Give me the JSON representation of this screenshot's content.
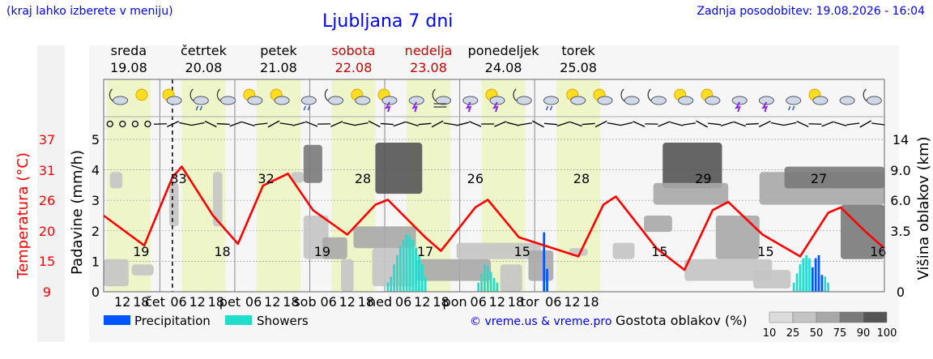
{
  "header": {
    "location_hint": "(kraj lahko izberete v meniju)",
    "title": "Ljubljana 7 dni",
    "last_update": "Zadnja posodobitev: 19.08.2026 - 16:04"
  },
  "chart_data": {
    "type": "line",
    "days": [
      {
        "name": "sreda",
        "date": "19.08",
        "weekend": false
      },
      {
        "name": "četrtek",
        "date": "20.08",
        "weekend": false
      },
      {
        "name": "petek",
        "date": "21.08",
        "weekend": false
      },
      {
        "name": "sobota",
        "date": "22.08",
        "weekend": true
      },
      {
        "name": "nedelja",
        "date": "23.08",
        "weekend": true
      },
      {
        "name": "ponedeljek",
        "date": "24.08",
        "weekend": false
      },
      {
        "name": "torek",
        "date": "25.08",
        "weekend": false
      }
    ],
    "day_short": [
      "čet",
      "pet",
      "sob",
      "ned",
      "pon",
      "tor"
    ],
    "hour_ticks": [
      "06",
      "12",
      "18"
    ],
    "now_hour": 16,
    "left_axis_temp": {
      "label": "Temperatura (°C)",
      "ticks": [
        9,
        15,
        20,
        26,
        31,
        37
      ],
      "color": "#ff0000"
    },
    "left_axis_precip": {
      "label": "Padavine (mm/h)",
      "ticks": [
        0,
        1,
        2,
        3,
        4,
        5
      ],
      "ylim": [
        0,
        5
      ]
    },
    "right_axis": {
      "label": "Višina oblakov (km)",
      "ticks": [
        "0",
        "3.5",
        "6.0",
        "9.0",
        "14"
      ]
    },
    "temperature": {
      "name": "Temperatura",
      "color": "#ff0000",
      "points": [
        {
          "h": 0,
          "t": 23
        },
        {
          "h": 13,
          "t": 17.5
        },
        {
          "h": 22,
          "t": 30
        },
        {
          "h": 25,
          "t": 32
        },
        {
          "h": 35,
          "t": 23
        },
        {
          "h": 43,
          "t": 17.8
        },
        {
          "h": 51,
          "t": 28.5
        },
        {
          "h": 59,
          "t": 30.7
        },
        {
          "h": 67,
          "t": 24
        },
        {
          "h": 78,
          "t": 19.5
        },
        {
          "h": 87,
          "t": 25
        },
        {
          "h": 91,
          "t": 25.9
        },
        {
          "h": 103,
          "t": 19
        },
        {
          "h": 108,
          "t": 16.5
        },
        {
          "h": 119,
          "t": 24.5
        },
        {
          "h": 123,
          "t": 25.9
        },
        {
          "h": 133,
          "t": 19
        },
        {
          "h": 152,
          "t": 15.5
        },
        {
          "h": 160,
          "t": 25
        },
        {
          "h": 164,
          "t": 26.5
        },
        {
          "h": 177,
          "t": 17
        },
        {
          "h": 186,
          "t": 13
        },
        {
          "h": 195,
          "t": 24
        },
        {
          "h": 200,
          "t": 25.5
        },
        {
          "h": 211,
          "t": 19.5
        },
        {
          "h": 223,
          "t": 15.5
        },
        {
          "h": 232,
          "t": 23.5
        },
        {
          "h": 236,
          "t": 24.5
        },
        {
          "h": 244,
          "t": 20
        },
        {
          "h": 250,
          "t": 17
        }
      ],
      "labels": [
        {
          "h": 12,
          "text": "19"
        },
        {
          "h": 24,
          "text": "33"
        },
        {
          "h": 38,
          "text": "18"
        },
        {
          "h": 52,
          "text": "32"
        },
        {
          "h": 70,
          "text": "19"
        },
        {
          "h": 83,
          "text": "28"
        },
        {
          "h": 103,
          "text": "17"
        },
        {
          "h": 119,
          "text": "26"
        },
        {
          "h": 134,
          "text": "15"
        },
        {
          "h": 153,
          "text": "28"
        },
        {
          "h": 178,
          "text": "15"
        },
        {
          "h": 192,
          "text": "29"
        },
        {
          "h": 212,
          "text": "15"
        },
        {
          "h": 229,
          "text": "27"
        },
        {
          "h": 248,
          "text": "16"
        }
      ]
    },
    "precipitation": {
      "name": "Precipitation",
      "color": "#0055ff",
      "bars": [
        {
          "h": 141,
          "v": 1.95
        },
        {
          "h": 142,
          "v": 0.75
        },
        {
          "h": 227,
          "v": 0.8
        },
        {
          "h": 228,
          "v": 1.1
        },
        {
          "h": 229,
          "v": 1.2
        },
        {
          "h": 230,
          "v": 0.55
        }
      ]
    },
    "showers": {
      "name": "Showers",
      "color": "#22ddcc",
      "bars": [
        {
          "h": 91,
          "v": 0.3
        },
        {
          "h": 92,
          "v": 0.5
        },
        {
          "h": 93,
          "v": 0.9
        },
        {
          "h": 94,
          "v": 1.2
        },
        {
          "h": 95,
          "v": 1.5
        },
        {
          "h": 96,
          "v": 1.7
        },
        {
          "h": 97,
          "v": 1.9
        },
        {
          "h": 98,
          "v": 1.85
        },
        {
          "h": 99,
          "v": 1.7
        },
        {
          "h": 100,
          "v": 1.45
        },
        {
          "h": 101,
          "v": 1.2
        },
        {
          "h": 102,
          "v": 0.9
        },
        {
          "h": 103,
          "v": 0.5
        },
        {
          "h": 120,
          "v": 0.3
        },
        {
          "h": 121,
          "v": 0.6
        },
        {
          "h": 122,
          "v": 0.9
        },
        {
          "h": 123,
          "v": 0.85
        },
        {
          "h": 124,
          "v": 0.65
        },
        {
          "h": 125,
          "v": 0.45
        },
        {
          "h": 126,
          "v": 0.3
        },
        {
          "h": 221,
          "v": 0.3
        },
        {
          "h": 222,
          "v": 0.6
        },
        {
          "h": 223,
          "v": 0.9
        },
        {
          "h": 224,
          "v": 1.1
        },
        {
          "h": 225,
          "v": 1.2
        },
        {
          "h": 226,
          "v": 1.1
        },
        {
          "h": 231,
          "v": 0.5
        },
        {
          "h": 232,
          "v": 0.3
        }
      ]
    },
    "clouds": [
      {
        "h0": 0,
        "h1": 8,
        "k0": 0.5,
        "k1": 3,
        "level": 25
      },
      {
        "h0": 2,
        "h1": 6,
        "k0": 9.5,
        "k1": 11,
        "level": 25
      },
      {
        "h0": 9,
        "h1": 16,
        "k0": 1.5,
        "k1": 2.5,
        "level": 25
      },
      {
        "h0": 21,
        "h1": 24,
        "k0": 6,
        "k1": 10,
        "level": 25
      },
      {
        "h0": 35,
        "h1": 38,
        "k0": 6,
        "k1": 11,
        "level": 25
      },
      {
        "h0": 60,
        "h1": 64,
        "k0": 10,
        "k1": 11,
        "level": 25
      },
      {
        "h0": 64,
        "h1": 72,
        "k0": 3,
        "k1": 7,
        "level": 25
      },
      {
        "h0": 64,
        "h1": 70,
        "k0": 10,
        "k1": 13.5,
        "level": 75
      },
      {
        "h0": 70,
        "h1": 78,
        "k0": 3,
        "k1": 5,
        "level": 50
      },
      {
        "h0": 76,
        "h1": 80,
        "k0": 0,
        "k1": 3,
        "level": 25
      },
      {
        "h0": 87,
        "h1": 102,
        "k0": 9,
        "k1": 13.7,
        "level": 90
      },
      {
        "h0": 80,
        "h1": 100,
        "k0": 4,
        "k1": 6,
        "level": 50
      },
      {
        "h0": 86,
        "h1": 100,
        "k0": 0.5,
        "k1": 4,
        "level": 25
      },
      {
        "h0": 100,
        "h1": 124,
        "k0": 1,
        "k1": 3,
        "level": 50
      },
      {
        "h0": 113,
        "h1": 140,
        "k0": 3,
        "k1": 4.5,
        "level": 25
      },
      {
        "h0": 127,
        "h1": 134,
        "k0": 0,
        "k1": 2.5,
        "level": 25
      },
      {
        "h0": 136,
        "h1": 144,
        "k0": 1,
        "k1": 3.8,
        "level": 50
      },
      {
        "h0": 149,
        "h1": 155,
        "k0": 3.3,
        "k1": 4,
        "level": 25
      },
      {
        "h0": 163,
        "h1": 170,
        "k0": 3,
        "k1": 4.5,
        "level": 25
      },
      {
        "h0": 173,
        "h1": 182,
        "k0": 5.5,
        "k1": 7,
        "level": 50
      },
      {
        "h0": 179,
        "h1": 198,
        "k0": 9.5,
        "k1": 13.7,
        "level": 90
      },
      {
        "h0": 176,
        "h1": 200,
        "k0": 8,
        "k1": 10,
        "level": 50
      },
      {
        "h0": 196,
        "h1": 210,
        "k0": 3,
        "k1": 7,
        "level": 50
      },
      {
        "h0": 186,
        "h1": 214,
        "k0": 1,
        "k1": 3,
        "level": 25
      },
      {
        "h0": 210,
        "h1": 250,
        "k0": 8,
        "k1": 11,
        "level": 50
      },
      {
        "h0": 218,
        "h1": 250,
        "k0": 9.5,
        "k1": 11.5,
        "level": 75
      },
      {
        "h0": 236,
        "h1": 250,
        "k0": 3,
        "k1": 8,
        "level": 75
      },
      {
        "h0": 208,
        "h1": 220,
        "k0": 0.3,
        "k1": 2,
        "level": 25
      }
    ],
    "weather_icons": [
      "moon-partly-cloudy-icon",
      "sun-icon",
      "sun-cloud-icon",
      "moon-rain-icon",
      "moon-partly-cloudy-icon",
      "sun-cloud-icon",
      "sun-cloud-icon",
      "showers-icon",
      "moon-partly-cloudy-icon",
      "sun-cloud-icon",
      "sun-thunder-icon",
      "thunder-icon",
      "moon-fog-icon",
      "thunder-icon",
      "sun-thunder-icon",
      "moon-partly-cloudy-icon",
      "rain-icon",
      "sun-cloud-icon",
      "sun-cloud-icon",
      "moon-partly-cloudy-icon",
      "moon-partly-cloudy-icon",
      "sun-cloud-icon",
      "sun-cloud-icon",
      "thunder-icon",
      "thunder-icon",
      "rain-icon",
      "sun-cloud-icon",
      "cloud-icon",
      "moon-partly-cloudy-icon"
    ],
    "legend": {
      "precipitation": "Precipitation",
      "showers": "Showers",
      "credit": "© vreme.us & vreme.pro",
      "cloud_density_label": "Gostota oblakov (%)",
      "cloud_density_levels": [
        "10",
        "25",
        "50",
        "75",
        "90",
        "100"
      ]
    }
  }
}
